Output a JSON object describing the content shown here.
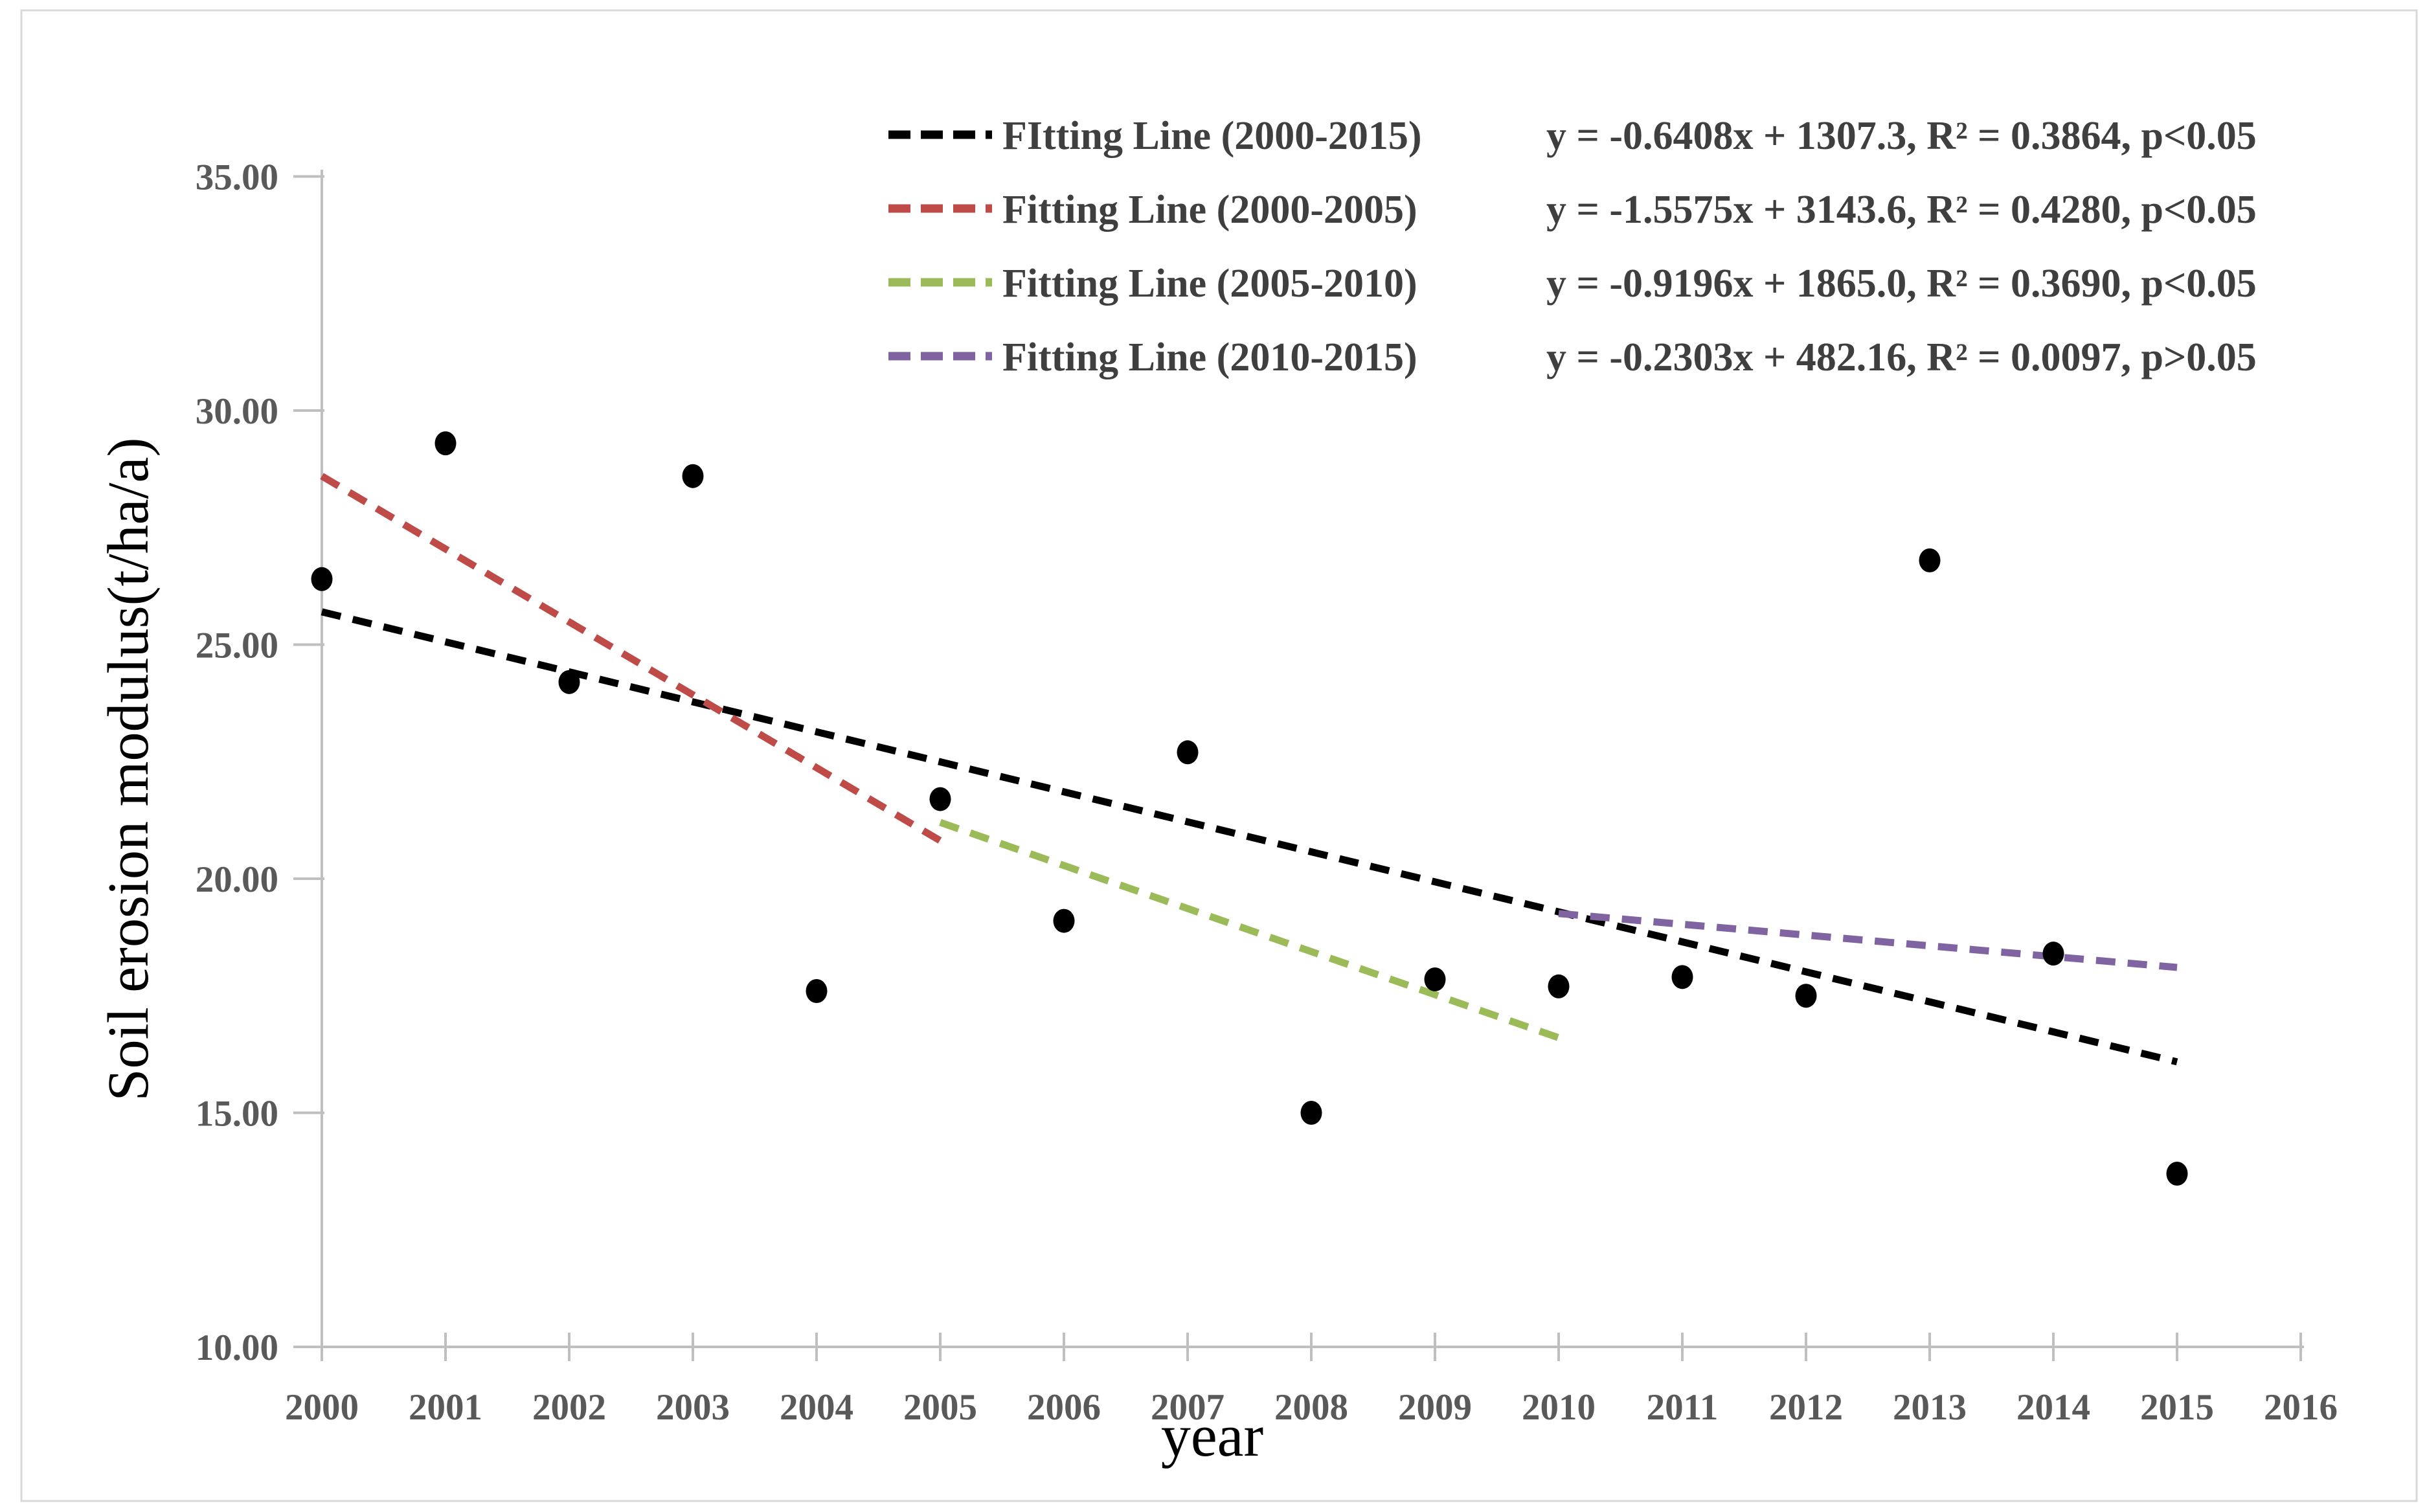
{
  "figure": {
    "background": "#ffffff",
    "frame_color": "#d8d8d8"
  },
  "chart_data": {
    "type": "scatter",
    "title": "",
    "xlabel": "year",
    "ylabel": "Soil erosion modulus(t/ha/a)",
    "xlim": [
      2000,
      2016
    ],
    "ylim": [
      10,
      35
    ],
    "grid": false,
    "legend_position": "top-right",
    "axis_color": "#bfbfbf",
    "tick_label_color": "#595959",
    "legend_text_color": "#3f3f3f",
    "point_color": "#000000",
    "x_ticks": [
      {
        "v": 2000,
        "label": "2000"
      },
      {
        "v": 2001,
        "label": "2001"
      },
      {
        "v": 2002,
        "label": "2002"
      },
      {
        "v": 2003,
        "label": "2003"
      },
      {
        "v": 2004,
        "label": "2004"
      },
      {
        "v": 2005,
        "label": "2005"
      },
      {
        "v": 2006,
        "label": "2006"
      },
      {
        "v": 2007,
        "label": "2007"
      },
      {
        "v": 2008,
        "label": "2008"
      },
      {
        "v": 2009,
        "label": "2009"
      },
      {
        "v": 2010,
        "label": "2010"
      },
      {
        "v": 2011,
        "label": "2011"
      },
      {
        "v": 2012,
        "label": "2012"
      },
      {
        "v": 2013,
        "label": "2013"
      },
      {
        "v": 2014,
        "label": "2014"
      },
      {
        "v": 2015,
        "label": "2015"
      },
      {
        "v": 2016,
        "label": "2016"
      }
    ],
    "y_ticks": [
      {
        "v": 10,
        "label": "10.00"
      },
      {
        "v": 15,
        "label": "15.00"
      },
      {
        "v": 20,
        "label": "20.00"
      },
      {
        "v": 25,
        "label": "25.00"
      },
      {
        "v": 30,
        "label": "30.00"
      },
      {
        "v": 35,
        "label": "35.00"
      }
    ],
    "points": {
      "x": [
        2000,
        2001,
        2002,
        2003,
        2004,
        2005,
        2006,
        2007,
        2008,
        2009,
        2010,
        2011,
        2012,
        2013,
        2014,
        2015
      ],
      "y": [
        26.4,
        29.3,
        24.2,
        28.6,
        17.6,
        21.7,
        19.1,
        22.7,
        15.0,
        17.85,
        17.7,
        17.9,
        17.5,
        26.8,
        18.4,
        13.7
      ]
    },
    "fit_lines": [
      {
        "label": "FItting Line (2000-2015)",
        "equation": "y = -0.6408x + 1307.3, R² = 0.3864, p<0.05",
        "slope": -0.6408,
        "intercept": 1307.3,
        "x_range": [
          2000,
          2015
        ],
        "color": "#000000"
      },
      {
        "label": "Fitting Line (2000-2005)",
        "equation": "y = -1.5575x + 3143.6, R² = 0.4280, p<0.05",
        "slope": -1.5575,
        "intercept": 3143.6,
        "x_range": [
          2000,
          2005
        ],
        "color": "#be4b48"
      },
      {
        "label": "Fitting Line (2005-2010)",
        "equation": "y = -0.9196x + 1865.0, R² = 0.3690, p<0.05",
        "slope": -0.9196,
        "intercept": 1865.0,
        "x_range": [
          2005,
          2010
        ],
        "color": "#9bbb59"
      },
      {
        "label": "Fitting Line (2010-2015)",
        "equation": "y = -0.2303x + 482.16, R² = 0.0097, p>0.05",
        "slope": -0.2303,
        "intercept": 482.16,
        "x_range": [
          2010,
          2015
        ],
        "color": "#8064a2"
      }
    ]
  }
}
